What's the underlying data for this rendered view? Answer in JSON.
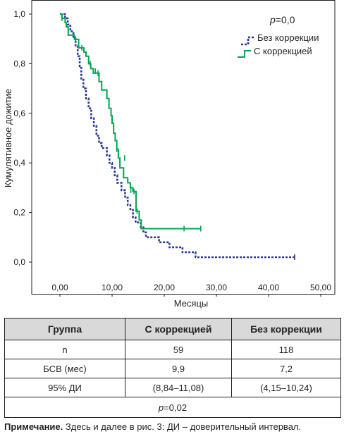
{
  "chart_data": {
    "type": "line",
    "step": true,
    "xlabel": "Месяцы",
    "ylabel": "Кумулятивное дожитие",
    "xlim": [
      0,
      50
    ],
    "ylim": [
      0,
      1
    ],
    "x_ticks": [
      "0,00",
      "10,00",
      "20,00",
      "30,00",
      "40,00",
      "50,00"
    ],
    "y_ticks": [
      "0,0",
      "0,2",
      "0,4",
      "0,6",
      "0,8",
      "1,0"
    ],
    "annotation": {
      "prefix": "p",
      "text": "=0,0"
    },
    "grid": false,
    "legend_position": "top-right",
    "series": [
      {
        "name": "Без коррекции",
        "color": "#2b3990",
        "dash": true,
        "points": [
          [
            0,
            1
          ],
          [
            1.0,
            0.983
          ],
          [
            1.5,
            0.958
          ],
          [
            2,
            0.93
          ],
          [
            2.6,
            0.9
          ],
          [
            3,
            0.87
          ],
          [
            3.4,
            0.83
          ],
          [
            3.8,
            0.79
          ],
          [
            4.1,
            0.74
          ],
          [
            4.5,
            0.7
          ],
          [
            5,
            0.66
          ],
          [
            5.5,
            0.62
          ],
          [
            6,
            0.58
          ],
          [
            6.5,
            0.55
          ],
          [
            7,
            0.51
          ],
          [
            7.5,
            0.48
          ],
          [
            8,
            0.46
          ],
          [
            9,
            0.43
          ],
          [
            9.5,
            0.4
          ],
          [
            10,
            0.38
          ],
          [
            10.5,
            0.35
          ],
          [
            11,
            0.32
          ],
          [
            11.8,
            0.29
          ],
          [
            12.5,
            0.26
          ],
          [
            13,
            0.23
          ],
          [
            13.5,
            0.21
          ],
          [
            14,
            0.18
          ],
          [
            14.5,
            0.16
          ],
          [
            15.5,
            0.14
          ],
          [
            16,
            0.12
          ],
          [
            16.5,
            0.1
          ],
          [
            19,
            0.08
          ],
          [
            21,
            0.06
          ],
          [
            23.5,
            0.04
          ],
          [
            26,
            0.02
          ],
          [
            45,
            0.02
          ]
        ],
        "censored": [
          [
            1.0,
            0.983
          ],
          [
            45,
            0.02
          ]
        ]
      },
      {
        "name": "С коррекцией",
        "color": "#00a651",
        "dash": false,
        "points": [
          [
            0,
            1
          ],
          [
            0.4,
            0.983
          ],
          [
            1,
            0.966
          ],
          [
            1.2,
            0.949
          ],
          [
            1.6,
            0.915
          ],
          [
            2.8,
            0.898
          ],
          [
            3.6,
            0.864
          ],
          [
            4.6,
            0.847
          ],
          [
            5,
            0.83
          ],
          [
            5.5,
            0.8
          ],
          [
            5.9,
            0.78
          ],
          [
            6.4,
            0.762
          ],
          [
            7.5,
            0.728
          ],
          [
            8,
            0.694
          ],
          [
            9,
            0.66
          ],
          [
            9.4,
            0.62
          ],
          [
            9.8,
            0.59
          ],
          [
            10,
            0.56
          ],
          [
            10.3,
            0.52
          ],
          [
            10.6,
            0.49
          ],
          [
            10.9,
            0.455
          ],
          [
            11.2,
            0.42
          ],
          [
            11.5,
            0.38
          ],
          [
            12.2,
            0.34
          ],
          [
            13,
            0.32
          ],
          [
            13.5,
            0.3
          ],
          [
            14,
            0.285
          ],
          [
            14.6,
            0.205
          ],
          [
            15.2,
            0.17
          ],
          [
            15.6,
            0.135
          ],
          [
            27,
            0.135
          ]
        ],
        "censored": [
          [
            0.4,
            0.983
          ],
          [
            3.0,
            0.898
          ],
          [
            4.2,
            0.864
          ],
          [
            5.8,
            0.8
          ],
          [
            6.8,
            0.77
          ],
          [
            7.3,
            0.762
          ],
          [
            10.9,
            0.455
          ],
          [
            12.4,
            0.42
          ],
          [
            13.6,
            0.29
          ],
          [
            14.2,
            0.285
          ],
          [
            14.8,
            0.205
          ],
          [
            23.8,
            0.135
          ],
          [
            27,
            0.135
          ]
        ]
      }
    ]
  },
  "table": {
    "headers": [
      "Группа",
      "С коррекцией",
      "Без коррекции"
    ],
    "rows": [
      {
        "label": "n",
        "with": "59",
        "without": "118"
      },
      {
        "label": "БСВ (мес)",
        "with": "9,9",
        "without": "7,2"
      },
      {
        "label": "95% ДИ",
        "with": "(8,84–11,08)",
        "without": "(4,15–10,24)"
      }
    ],
    "p_prefix": "p",
    "p_value": "=0,02"
  },
  "note": {
    "label": "Примечание.",
    "text": " Здесь и далее в рис. 3: ДИ – доверительный интервал."
  }
}
